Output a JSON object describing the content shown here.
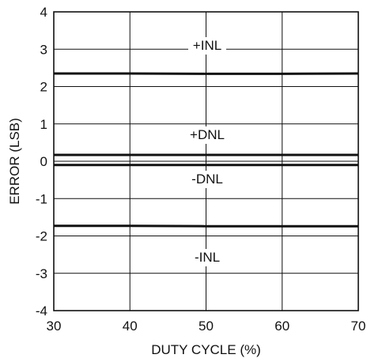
{
  "chart_data": {
    "type": "line",
    "title": "",
    "xlabel": "DUTY CYCLE (%)",
    "ylabel": "ERROR (LSB)",
    "xlim": [
      30,
      70
    ],
    "ylim": [
      -4,
      4
    ],
    "x_ticks": [
      30,
      40,
      50,
      60,
      70
    ],
    "y_ticks": [
      4,
      3,
      2,
      1,
      0,
      -1,
      -2,
      -3,
      -4
    ],
    "grid": true,
    "series": [
      {
        "name": "+INL",
        "x": [
          30,
          40,
          50,
          60,
          70
        ],
        "y": [
          2.35,
          2.35,
          2.34,
          2.34,
          2.35
        ]
      },
      {
        "name": "+DNL",
        "x": [
          30,
          40,
          50,
          60,
          70
        ],
        "y": [
          0.17,
          0.17,
          0.17,
          0.17,
          0.17
        ]
      },
      {
        "name": "-DNL",
        "x": [
          30,
          40,
          50,
          60,
          70
        ],
        "y": [
          -0.1,
          -0.1,
          -0.1,
          -0.1,
          -0.1
        ]
      },
      {
        "name": "-INL",
        "x": [
          30,
          40,
          50,
          60,
          70
        ],
        "y": [
          -1.73,
          -1.73,
          -1.74,
          -1.74,
          -1.74
        ]
      }
    ],
    "annotations": [
      "+INL",
      "+DNL",
      "-DNL",
      "-INL"
    ]
  }
}
